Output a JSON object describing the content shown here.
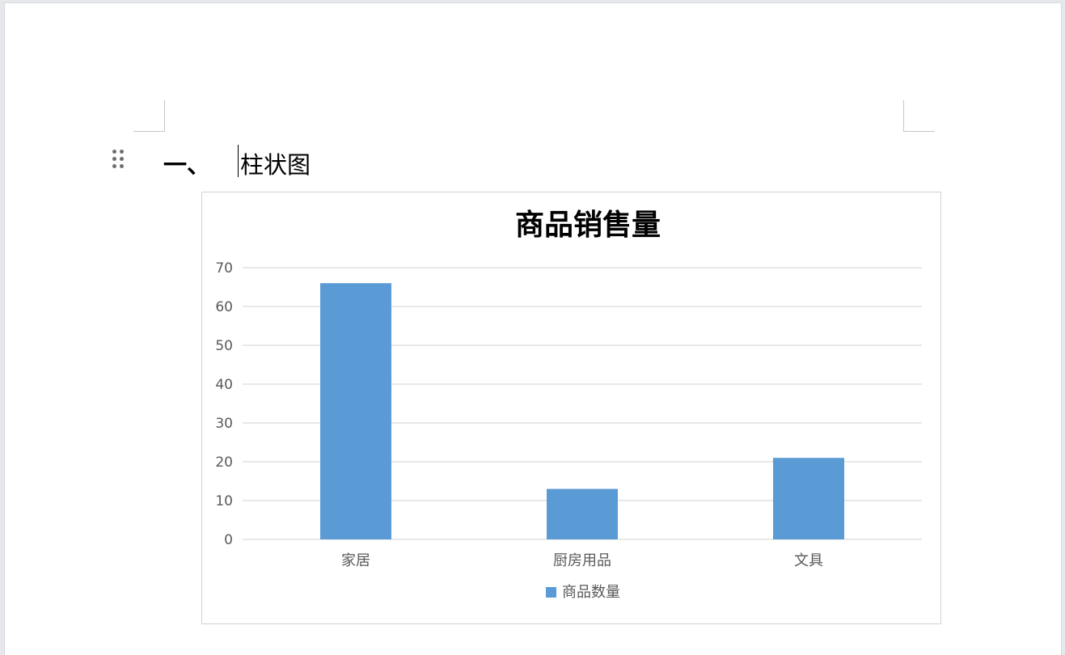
{
  "document": {
    "heading_number": "一、",
    "heading_title": "柱状图"
  },
  "chart_data": {
    "type": "bar",
    "title": "商品销售量",
    "categories": [
      "家居",
      "厨房用品",
      "文具"
    ],
    "series": [
      {
        "name": "商品数量",
        "values": [
          66,
          13,
          21
        ],
        "color": "#5b9bd5"
      }
    ],
    "ylim": [
      0,
      70
    ],
    "yticks": [
      "0",
      "10",
      "20",
      "30",
      "40",
      "50",
      "60",
      "70"
    ],
    "xlabel": "",
    "ylabel": "",
    "grid": true,
    "legend_position": "bottom"
  }
}
